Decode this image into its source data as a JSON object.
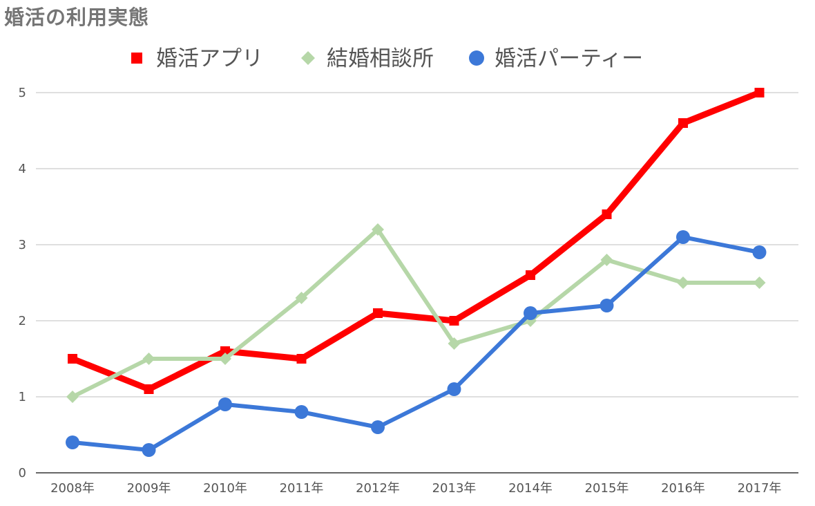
{
  "chart_data": {
    "type": "line",
    "title": "婚活の利用実態",
    "xlabel": "",
    "ylabel": "",
    "categories": [
      "2008年",
      "2009年",
      "2010年",
      "2011年",
      "2012年",
      "2013年",
      "2014年",
      "2015年",
      "2016年",
      "2017年"
    ],
    "ylim": [
      0,
      5
    ],
    "yticks": [
      "0",
      "1",
      "2",
      "3",
      "4",
      "5"
    ],
    "grid": true,
    "legend_position": "top-center",
    "series": [
      {
        "name": "婚活アプリ",
        "marker": "square",
        "color": "#ff0000",
        "values": [
          1.5,
          1.1,
          1.6,
          1.5,
          2.1,
          2.0,
          2.6,
          3.4,
          4.6,
          5.0
        ]
      },
      {
        "name": "結婚相談所",
        "marker": "diamond",
        "color": "#b6d7a8",
        "values": [
          1.0,
          1.5,
          1.5,
          2.3,
          3.2,
          1.7,
          2.0,
          2.8,
          2.5,
          2.5
        ]
      },
      {
        "name": "婚活パーティー",
        "marker": "circle",
        "color": "#3c78d8",
        "values": [
          0.4,
          0.3,
          0.9,
          0.8,
          0.6,
          1.1,
          2.1,
          2.2,
          3.1,
          2.9
        ]
      }
    ]
  }
}
